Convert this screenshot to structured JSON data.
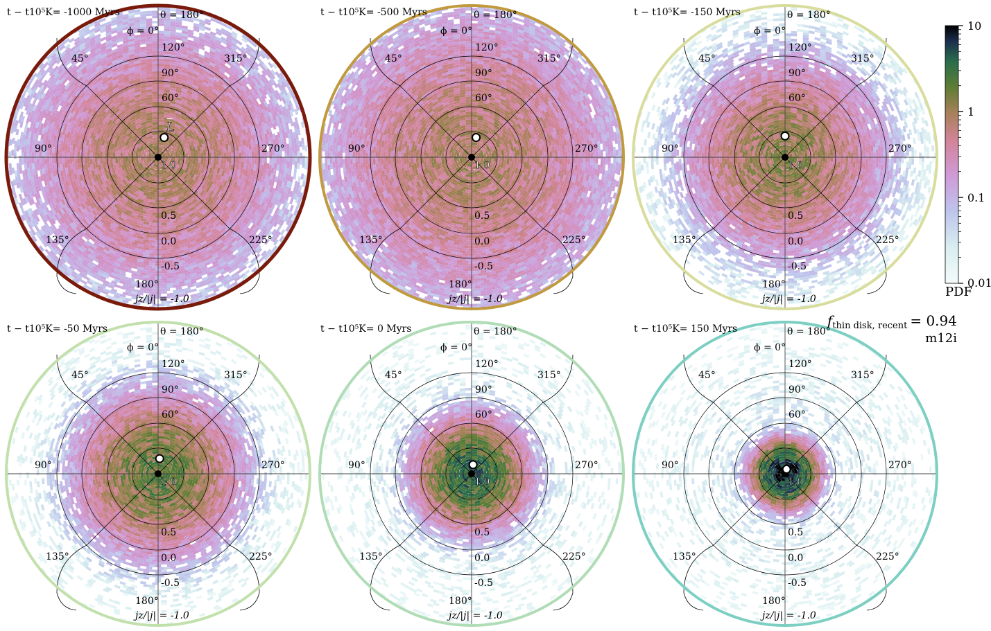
{
  "chart_data": {
    "type": "heatmap",
    "projection": "polar (orientation of angular momentum)",
    "colormap": "cubehelix-like (white → lavender → pink → green → black)",
    "colorbar": {
      "label": "PDF",
      "scale": "log",
      "range": [
        0.01,
        10
      ],
      "ticks": [
        "10",
        "1",
        "0.1",
        "0.01"
      ]
    },
    "annotation": {
      "f_label": "f",
      "f_sub": "thin disk, recent",
      "f_value": "= 0.94",
      "sim_name": "m12i"
    },
    "angular_labels": {
      "theta_top": "θ = 180°",
      "phi_top": "ϕ = 0°",
      "theta_rings": [
        "120°",
        "90°",
        "60°"
      ],
      "phi_labels": {
        "45": "45°",
        "315": "315°",
        "90": "90°",
        "270": "270°",
        "135": "135°",
        "225": "225°",
        "180": "180°"
      },
      "jz_ticks": [
        "1.0",
        "0.5",
        "0.0",
        "-0.5"
      ],
      "jz_bottom": "jz/|j| = -1.0",
      "L_label": "L"
    },
    "panels": [
      {
        "label": "t − t10⁵K= -1000 Myrs",
        "time": -1000,
        "ring_color": "#7a1a0a",
        "concentration": 0.42,
        "peak": 0.8,
        "L_offset": [
          0.04,
          -0.13
        ]
      },
      {
        "label": "t − t10⁵K= -500 Myrs",
        "time": -500,
        "ring_color": "#c09a3c",
        "concentration": 0.46,
        "peak": 0.8,
        "L_offset": [
          0.03,
          -0.13
        ]
      },
      {
        "label": "t − t10⁵K= -150 Myrs",
        "time": -150,
        "ring_color": "#d8dc9c",
        "concentration": 0.3,
        "peak": 1.2,
        "L_offset": [
          0.0,
          -0.14
        ]
      },
      {
        "label": "t − t10⁵K= -50 Myrs",
        "time": -50,
        "ring_color": "#c2e0ac",
        "concentration": 0.24,
        "peak": 2.0,
        "L_offset": [
          0.01,
          -0.1
        ]
      },
      {
        "label": "t − t10⁵K= 0 Myrs",
        "time": 0,
        "ring_color": "#b0dcb6",
        "concentration": 0.16,
        "peak": 4.0,
        "L_offset": [
          0.01,
          -0.06
        ]
      },
      {
        "label": "t − t10⁵K= 150 Myrs",
        "time": 150,
        "ring_color": "#7ccfc2",
        "concentration": 0.09,
        "peak": 10.0,
        "L_offset": [
          0.01,
          -0.03
        ]
      }
    ]
  }
}
